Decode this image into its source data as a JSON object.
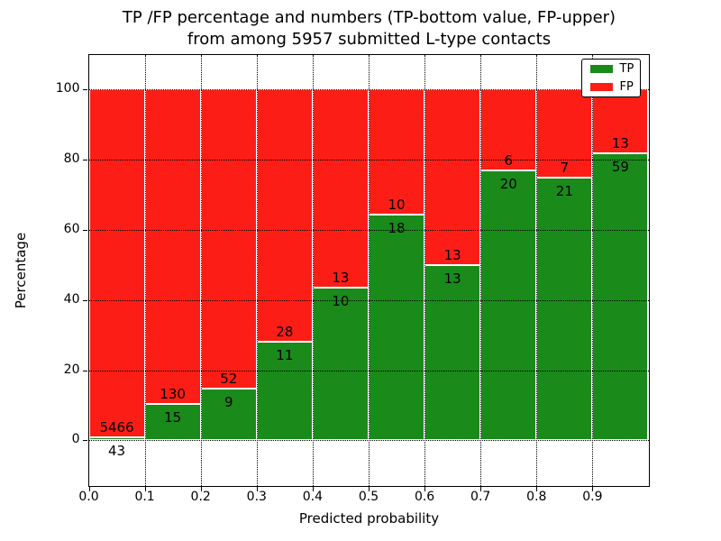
{
  "title": {
    "line1": "TP /FP percentage and numbers (TP-bottom value, FP-upper)",
    "line2": "from among 5957 submitted L-type contacts"
  },
  "axes": {
    "xlabel": "Predicted probability",
    "ylabel": "Percentage",
    "x_tick_labels": [
      "0.0",
      "0.1",
      "0.2",
      "0.3",
      "0.4",
      "0.5",
      "0.6",
      "0.7",
      "0.8",
      "0.9"
    ],
    "y_tick_labels": [
      "0",
      "20",
      "40",
      "60",
      "80",
      "100"
    ]
  },
  "legend": {
    "items": [
      {
        "label": "TP",
        "color": "#1a8a1a"
      },
      {
        "label": "FP",
        "color": "#fc1e16"
      }
    ]
  },
  "colors": {
    "tp": "#1a8a1a",
    "fp": "#fc1e16",
    "grid": "#000000",
    "background": "#ffffff"
  },
  "chart_data": {
    "type": "bar",
    "stacked": true,
    "normalized_to_percent": true,
    "title": "TP /FP percentage and numbers (TP-bottom value, FP-upper) from among 5957 submitted L-type contacts",
    "xlabel": "Predicted probability",
    "ylabel": "Percentage",
    "total_contacts": 5957,
    "xlim": [
      0.0,
      1.0
    ],
    "ylim": [
      -12.9,
      110
    ],
    "grid": "dotted",
    "legend_entries": [
      "TP",
      "FP"
    ],
    "legend_position": "upper right",
    "y_ticks": [
      0,
      20,
      40,
      60,
      80,
      100
    ],
    "x_ticks": [
      0.0,
      0.1,
      0.2,
      0.3,
      0.4,
      0.5,
      0.6,
      0.7,
      0.8,
      0.9
    ],
    "bins": [
      {
        "range": "0.0-0.1",
        "start": 0.0,
        "end": 0.1,
        "tp": 43,
        "fp": 5466,
        "tp_pct": 0.78,
        "fp_pct": 99.22
      },
      {
        "range": "0.1-0.2",
        "start": 0.1,
        "end": 0.2,
        "tp": 15,
        "fp": 130,
        "tp_pct": 10.34,
        "fp_pct": 89.66
      },
      {
        "range": "0.2-0.3",
        "start": 0.2,
        "end": 0.3,
        "tp": 9,
        "fp": 52,
        "tp_pct": 14.75,
        "fp_pct": 85.25
      },
      {
        "range": "0.3-0.4",
        "start": 0.3,
        "end": 0.4,
        "tp": 11,
        "fp": 28,
        "tp_pct": 28.21,
        "fp_pct": 71.79
      },
      {
        "range": "0.4-0.5",
        "start": 0.4,
        "end": 0.5,
        "tp": 10,
        "fp": 13,
        "tp_pct": 43.48,
        "fp_pct": 56.52
      },
      {
        "range": "0.5-0.6",
        "start": 0.5,
        "end": 0.6,
        "tp": 18,
        "fp": 10,
        "tp_pct": 64.29,
        "fp_pct": 35.71
      },
      {
        "range": "0.6-0.7",
        "start": 0.6,
        "end": 0.7,
        "tp": 13,
        "fp": 13,
        "tp_pct": 50.0,
        "fp_pct": 50.0
      },
      {
        "range": "0.7-0.8",
        "start": 0.7,
        "end": 0.8,
        "tp": 20,
        "fp": 6,
        "tp_pct": 76.92,
        "fp_pct": 23.08
      },
      {
        "range": "0.8-0.9",
        "start": 0.8,
        "end": 0.9,
        "tp": 21,
        "fp": 7,
        "tp_pct": 75.0,
        "fp_pct": 25.0
      },
      {
        "range": "0.9-1.0",
        "start": 0.9,
        "end": 1.0,
        "tp": 59,
        "fp": 13,
        "tp_pct": 81.94,
        "fp_pct": 18.06
      }
    ]
  }
}
